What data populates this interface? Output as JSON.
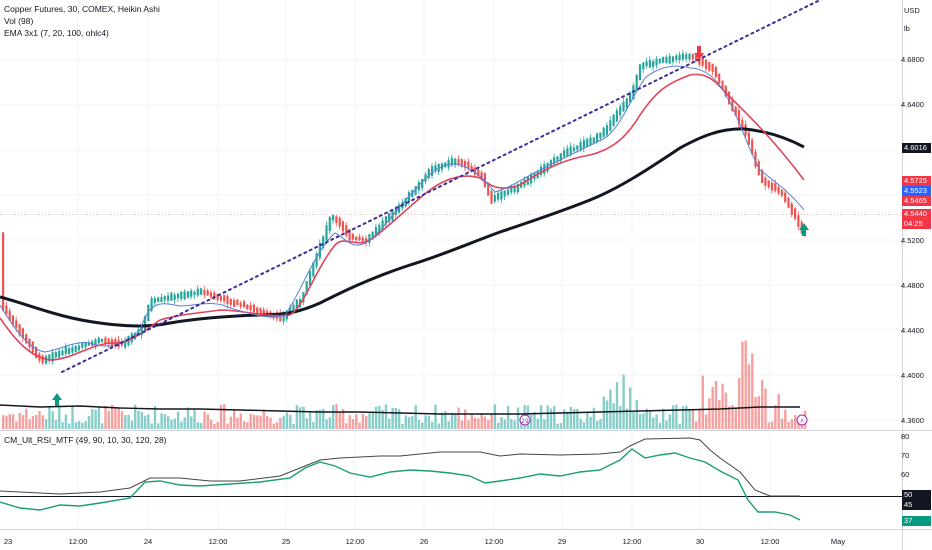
{
  "legend": {
    "title": "Copper Futures, 30, COMEX, Heikin Ashi",
    "volume": "Vol (98)",
    "ema": "EMA 3x1 (7, 20, 100, ohlc4)",
    "rsi": "CM_Ult_RSI_MTF (49, 90, 10, 30, 120, 28)"
  },
  "axis_units": {
    "currency": "USD",
    "unit": "lb"
  },
  "price_axis": [
    "4.6800",
    "4.6400",
    "4.5200",
    "4.4800",
    "4.4400",
    "4.4000",
    "4.3600"
  ],
  "price_tags": [
    {
      "value": "4.6016",
      "color": "#131722"
    },
    {
      "value": "4.5725",
      "color": "#f23645"
    },
    {
      "value": "4.5523",
      "color": "#2962ff"
    },
    {
      "value": "4.5465",
      "color": "#f23645"
    },
    {
      "value": "4.5440",
      "color": "#f23645"
    },
    {
      "value": "04:25",
      "color": "#f23645"
    }
  ],
  "rsi_axis": [
    "80",
    "70",
    "60"
  ],
  "rsi_tags": [
    {
      "value": "50",
      "color": "#131722"
    },
    {
      "value": "45",
      "color": "#131722"
    },
    {
      "value": "37",
      "color": "#089981"
    }
  ],
  "time_axis": [
    "23",
    "12:00",
    "24",
    "12:00",
    "25",
    "12:00",
    "26",
    "12:00",
    "29",
    "12:00",
    "30",
    "12:00",
    "May"
  ],
  "colors": {
    "up": "#26a69a",
    "down": "#ef5350",
    "ema_fast": "#5b7fd6",
    "ema_mid": "#e0445a",
    "ema_slow": "#131722",
    "trend": "#3a2e9c",
    "rsi": "#1b9e77",
    "rsi_upper": "#444444"
  }
}
